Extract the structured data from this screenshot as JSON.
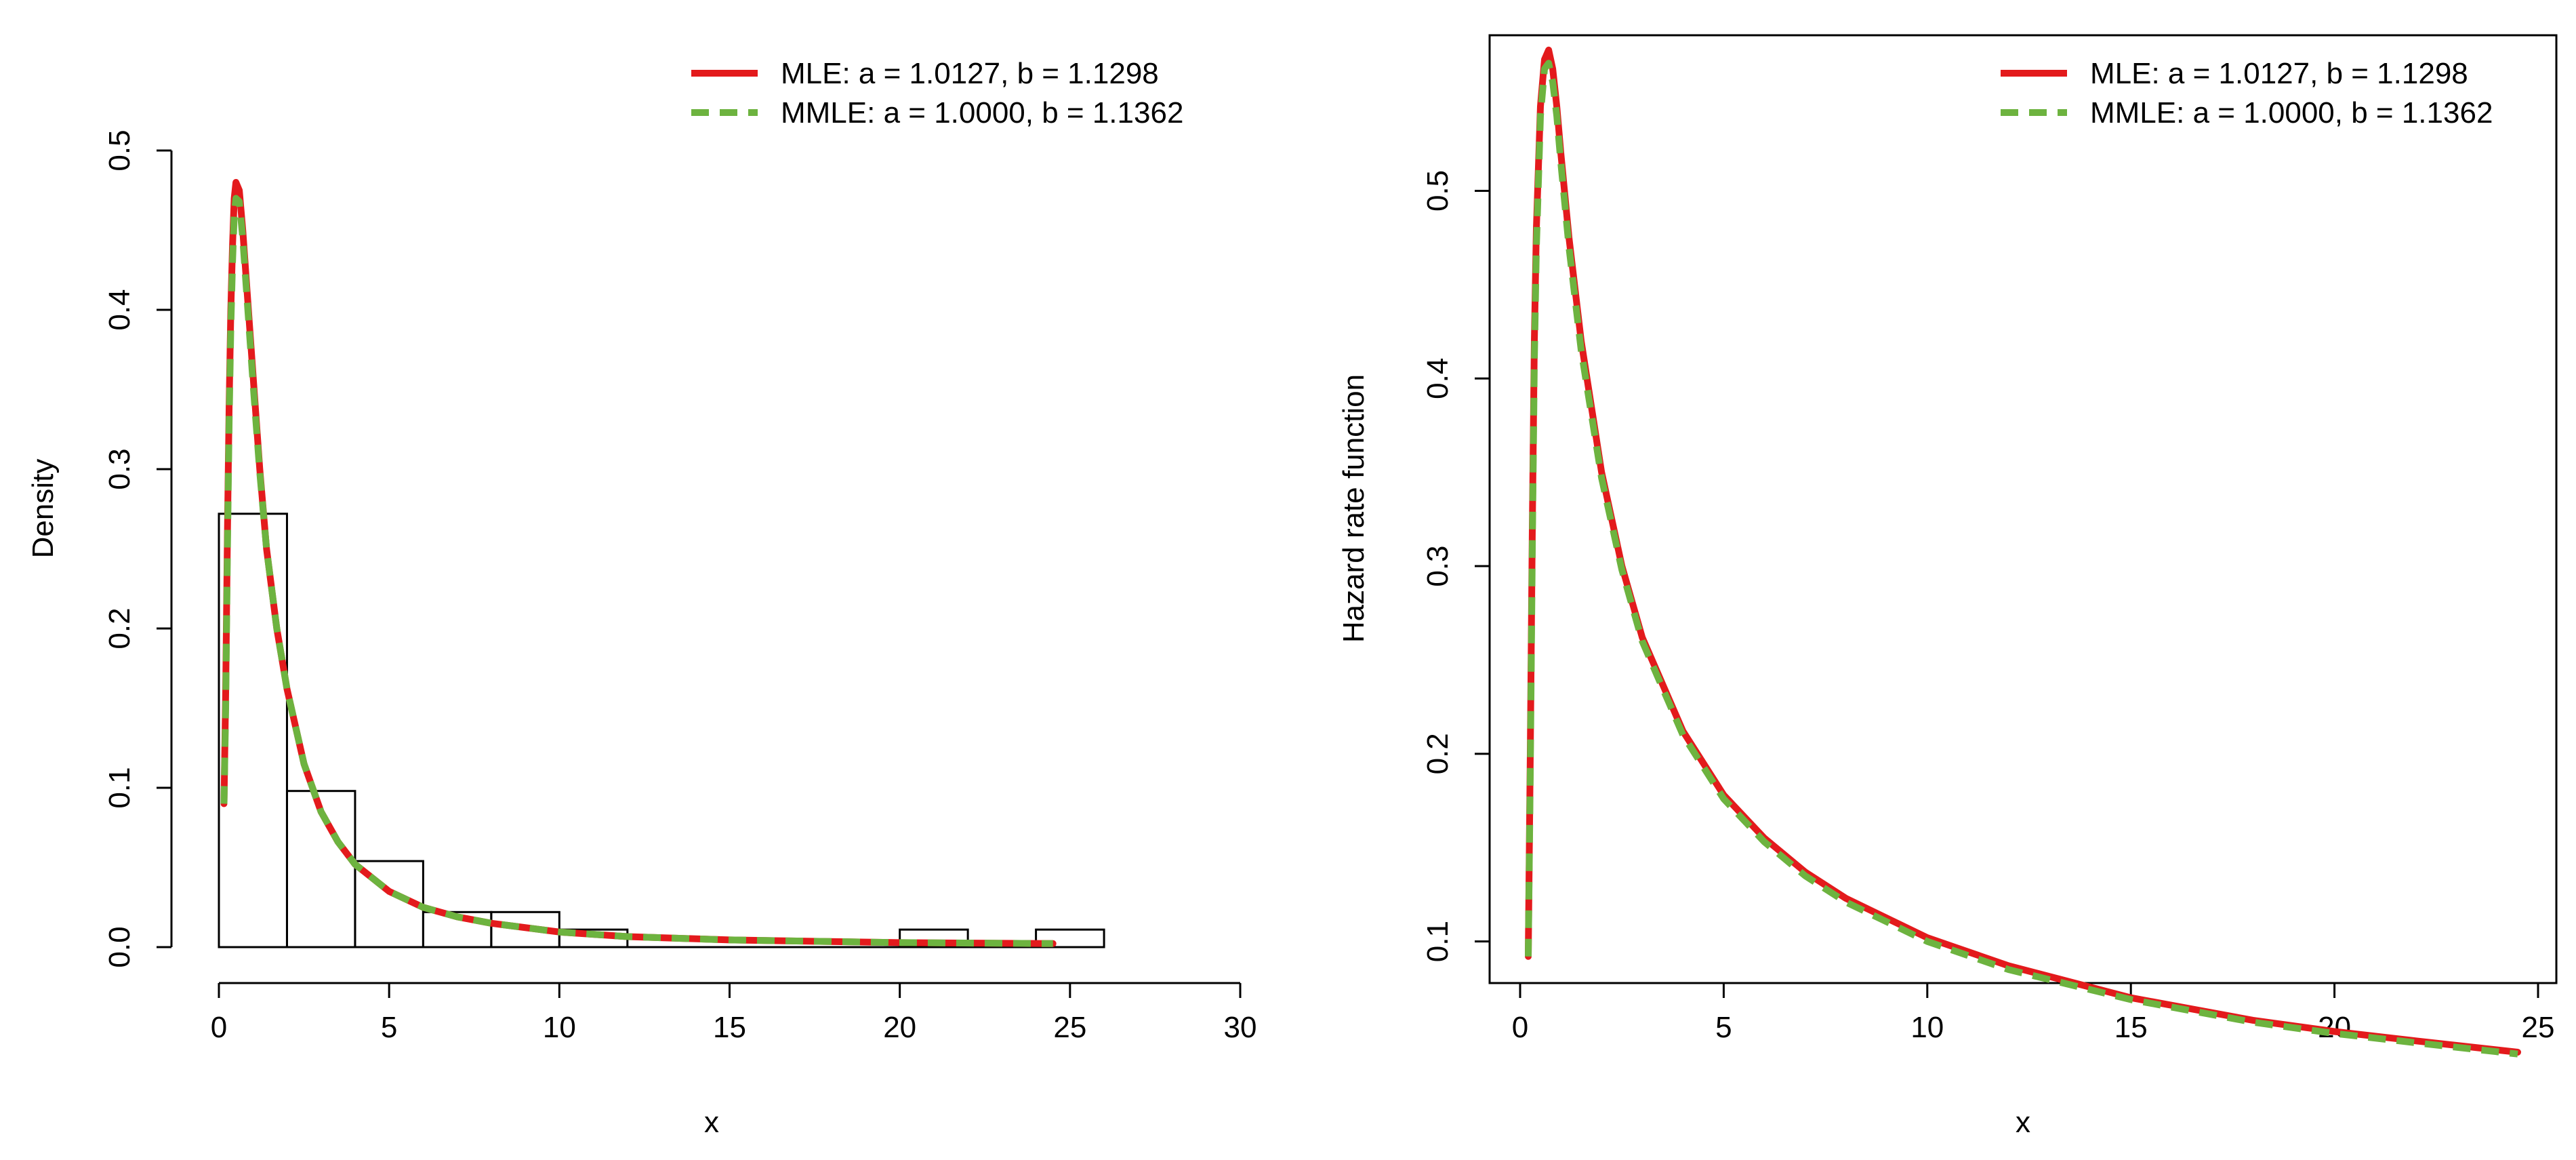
{
  "chart_data": [
    {
      "type": "histogram",
      "xlabel": "x",
      "ylabel": "Density",
      "xlim": [
        0,
        30
      ],
      "ylim": [
        0,
        0.5
      ],
      "xticks": [
        "0",
        "5",
        "10",
        "15",
        "20",
        "25",
        "30"
      ],
      "yticks": [
        "0.0",
        "0.1",
        "0.2",
        "0.3",
        "0.4",
        "0.5"
      ],
      "histogram": {
        "bin_edges": [
          0,
          2,
          4,
          6,
          8,
          10,
          12,
          14,
          16,
          18,
          20,
          22,
          24,
          26
        ],
        "density": [
          0.272,
          0.098,
          0.054,
          0.022,
          0.022,
          0.011,
          0,
          0,
          0,
          0,
          0.011,
          0,
          0.011
        ]
      },
      "series": [
        {
          "name": "MLE: a = 1.0127, b = 1.1298",
          "color": "#e31a1c",
          "style": "solid",
          "x": [
            0.15,
            0.2,
            0.25,
            0.3,
            0.35,
            0.4,
            0.45,
            0.5,
            0.6,
            0.7,
            0.8,
            1.0,
            1.2,
            1.4,
            1.7,
            2.0,
            2.5,
            3.0,
            3.5,
            4.0,
            5.0,
            6.0,
            7.0,
            8.0,
            10.0,
            12.0,
            15.0,
            20.0,
            24.5
          ],
          "y": [
            0.09,
            0.16,
            0.26,
            0.34,
            0.4,
            0.44,
            0.47,
            0.48,
            0.475,
            0.45,
            0.42,
            0.36,
            0.3,
            0.25,
            0.2,
            0.162,
            0.115,
            0.085,
            0.066,
            0.052,
            0.035,
            0.025,
            0.019,
            0.015,
            0.0095,
            0.0066,
            0.0045,
            0.0028,
            0.0022
          ]
        },
        {
          "name": "MMLE: a = 1.0000, b = 1.1362",
          "color": "#6db33f",
          "style": "dashed",
          "x": [
            0.15,
            0.2,
            0.25,
            0.3,
            0.35,
            0.4,
            0.45,
            0.5,
            0.6,
            0.7,
            0.8,
            1.0,
            1.2,
            1.4,
            1.7,
            2.0,
            2.5,
            3.0,
            3.5,
            4.0,
            5.0,
            6.0,
            7.0,
            8.0,
            10.0,
            12.0,
            15.0,
            20.0,
            24.5
          ],
          "y": [
            0.09,
            0.15,
            0.25,
            0.33,
            0.39,
            0.43,
            0.46,
            0.47,
            0.468,
            0.445,
            0.415,
            0.355,
            0.298,
            0.25,
            0.2,
            0.162,
            0.115,
            0.085,
            0.066,
            0.052,
            0.035,
            0.025,
            0.019,
            0.015,
            0.0095,
            0.0066,
            0.0045,
            0.0028,
            0.0022
          ]
        }
      ],
      "legend": "top-right",
      "grid": false
    },
    {
      "type": "line",
      "xlabel": "x",
      "ylabel": "Hazard rate function",
      "xlim": [
        0,
        25
      ],
      "ylim": [
        0.08,
        0.58
      ],
      "xticks": [
        "0",
        "5",
        "10",
        "15",
        "20",
        "25"
      ],
      "yticks": [
        "0.1",
        "0.2",
        "0.3",
        "0.4",
        "0.5"
      ],
      "series": [
        {
          "name": "MLE: a = 1.0127, b = 1.1298",
          "color": "#e31a1c",
          "style": "solid",
          "x": [
            0.2,
            0.25,
            0.3,
            0.35,
            0.4,
            0.5,
            0.6,
            0.7,
            0.8,
            0.9,
            1.0,
            1.2,
            1.5,
            2.0,
            2.5,
            3.0,
            4.0,
            5.0,
            6.0,
            7.0,
            8.0,
            10.0,
            12.0,
            15.0,
            18.0,
            20.0,
            22.0,
            24.5
          ],
          "y": [
            0.092,
            0.2,
            0.32,
            0.42,
            0.48,
            0.545,
            0.57,
            0.575,
            0.565,
            0.545,
            0.52,
            0.475,
            0.42,
            0.35,
            0.3,
            0.262,
            0.212,
            0.178,
            0.155,
            0.137,
            0.123,
            0.102,
            0.087,
            0.07,
            0.058,
            0.052,
            0.047,
            0.041
          ]
        },
        {
          "name": "MMLE: a = 1.0000, b = 1.1362",
          "color": "#6db33f",
          "style": "dashed",
          "x": [
            0.2,
            0.25,
            0.3,
            0.35,
            0.4,
            0.5,
            0.6,
            0.7,
            0.8,
            0.9,
            1.0,
            1.2,
            1.5,
            2.0,
            2.5,
            3.0,
            4.0,
            5.0,
            6.0,
            7.0,
            8.0,
            10.0,
            12.0,
            15.0,
            18.0,
            20.0,
            22.0,
            24.5
          ],
          "y": [
            0.092,
            0.19,
            0.31,
            0.41,
            0.47,
            0.54,
            0.565,
            0.568,
            0.558,
            0.54,
            0.515,
            0.47,
            0.415,
            0.347,
            0.298,
            0.26,
            0.21,
            0.176,
            0.153,
            0.135,
            0.121,
            0.1,
            0.085,
            0.069,
            0.057,
            0.051,
            0.046,
            0.04
          ]
        }
      ],
      "legend": "top-right",
      "grid": false
    }
  ]
}
